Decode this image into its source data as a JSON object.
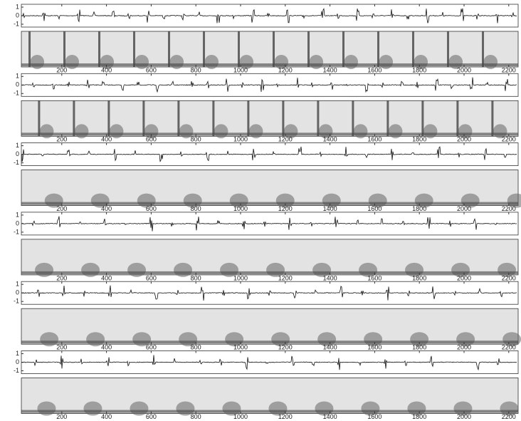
{
  "panels": [
    {
      "yticks": [
        1,
        0,
        -1
      ],
      "xticks": [
        200,
        400,
        600,
        800,
        1000,
        1200,
        1400,
        1600,
        1800,
        2000,
        2200
      ]
    },
    {
      "yticks": [
        1,
        0,
        -1
      ],
      "xticks": [
        200,
        400,
        600,
        800,
        1000,
        1200,
        1400,
        1600,
        1800,
        2000,
        2200
      ]
    },
    {
      "yticks": [
        1,
        0,
        -1
      ],
      "xticks": [
        200,
        400,
        600,
        800,
        1000,
        1200,
        1400,
        1600,
        1800,
        2000,
        2200
      ]
    },
    {
      "yticks": [
        1,
        0,
        -1
      ],
      "xticks": [
        200,
        400,
        600,
        800,
        1000,
        1200,
        1400,
        1600,
        1800,
        2000,
        2200
      ]
    },
    {
      "yticks": [
        1,
        0,
        -1
      ],
      "xticks": [
        200,
        400,
        600,
        800,
        1000,
        1200,
        1400,
        1600,
        1800,
        2000,
        2200
      ]
    },
    {
      "yticks": [
        1,
        0,
        -1
      ],
      "xticks": [
        200,
        400,
        600,
        800,
        1000,
        1200,
        1400,
        1600,
        1800,
        2000,
        2200
      ]
    }
  ]
}
